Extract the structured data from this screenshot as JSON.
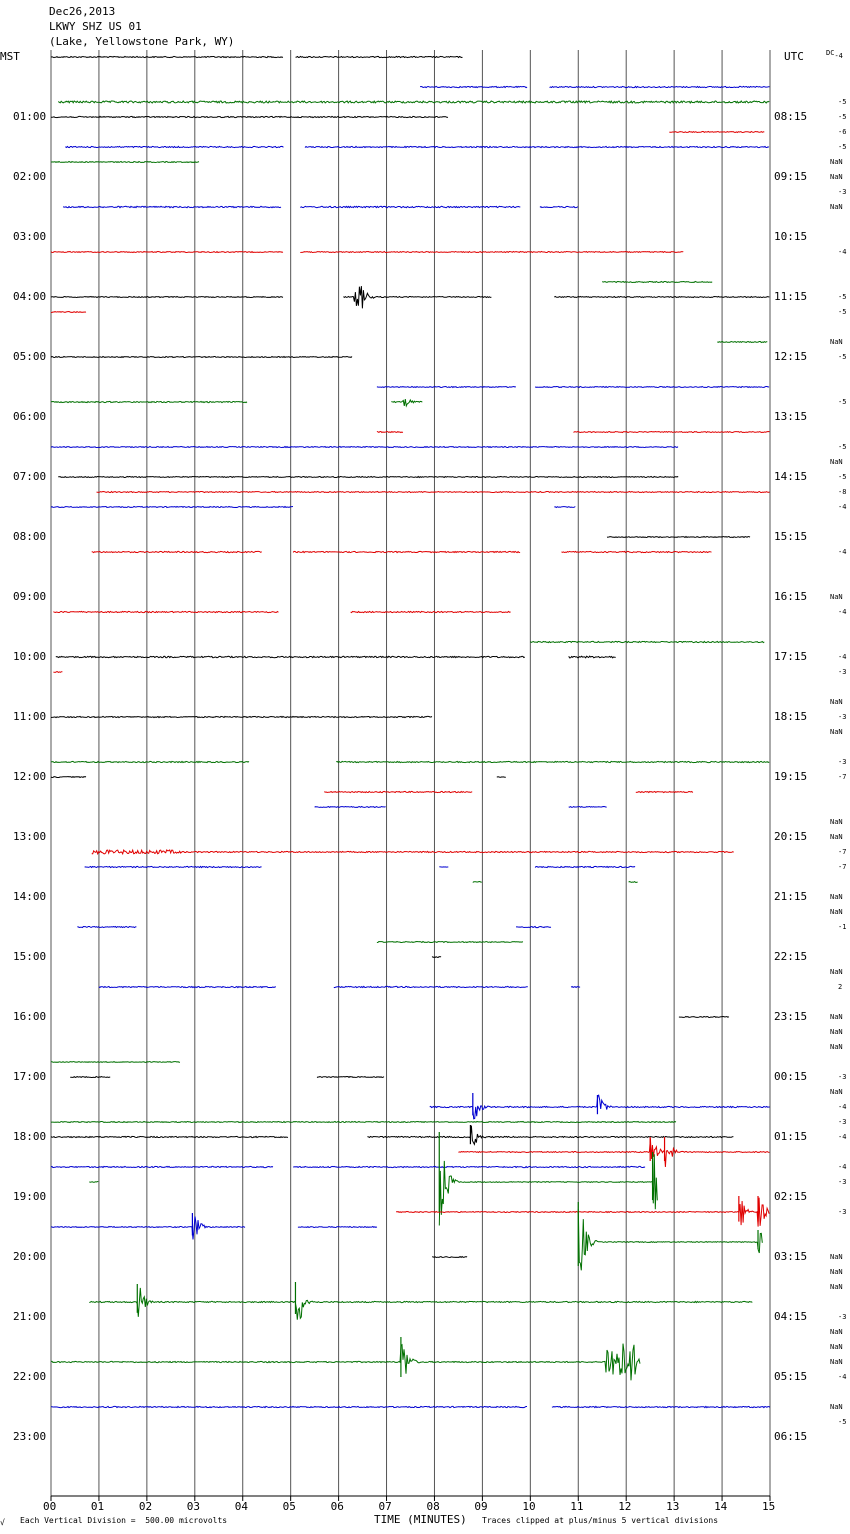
{
  "header": {
    "date": "Dec26,2013",
    "station": "LKWY SHZ US 01",
    "location": "(Lake, Yellowstone Park, WY)"
  },
  "left_tz": "MST",
  "right_tz": "UTC",
  "dc_label": "DC",
  "dc_value": "-4",
  "footer": {
    "left": "Each Vertical Division =  500.00 microvolts",
    "center": "TIME (MINUTES)",
    "right": "Traces clipped at plus/minus 5 vertical divisions",
    "corner": "√"
  },
  "chart_data": {
    "type": "line",
    "x_ticks": [
      "00",
      "01",
      "02",
      "03",
      "04",
      "05",
      "06",
      "07",
      "08",
      "09",
      "10",
      "11",
      "12",
      "13",
      "14",
      "15"
    ],
    "xlim": [
      0,
      15
    ],
    "xlabel": "TIME (MINUTES)",
    "grid": true,
    "row_colors": [
      "#000000",
      "#e00000",
      "#0000d0",
      "#007000"
    ],
    "rows_per_hour": 4,
    "hour_rows": 24,
    "total_rows": 96,
    "left_hour_labels": [
      "01:00",
      "02:00",
      "03:00",
      "04:00",
      "05:00",
      "06:00",
      "07:00",
      "08:00",
      "09:00",
      "10:00",
      "11:00",
      "12:00",
      "13:00",
      "14:00",
      "15:00",
      "16:00",
      "17:00",
      "18:00",
      "19:00",
      "20:00",
      "21:00",
      "22:00",
      "23:00"
    ],
    "right_hour_labels": [
      "08:15",
      "09:15",
      "10:15",
      "11:15",
      "12:15",
      "13:15",
      "14:15",
      "15:15",
      "16:15",
      "17:15",
      "18:15",
      "19:15",
      "20:15",
      "21:15",
      "22:15",
      "23:15",
      "00:15",
      "01:15",
      "02:15",
      "03:15",
      "04:15",
      "05:15",
      "06:15"
    ],
    "dc_offsets": [
      {
        "row": 3,
        "value": "-5"
      },
      {
        "row": 4,
        "value": "-5"
      },
      {
        "row": 5,
        "value": "-6"
      },
      {
        "row": 6,
        "value": "-5"
      },
      {
        "row": 7,
        "value": "NaN"
      },
      {
        "row": 8,
        "value": "NaN"
      },
      {
        "row": 9,
        "value": "-3"
      },
      {
        "row": 10,
        "value": "NaN"
      },
      {
        "row": 13,
        "value": "-4"
      },
      {
        "row": 16,
        "value": "-5"
      },
      {
        "row": 17,
        "value": "-5"
      },
      {
        "row": 19,
        "value": "NaN"
      },
      {
        "row": 20,
        "value": "-5"
      },
      {
        "row": 23,
        "value": "-5"
      },
      {
        "row": 26,
        "value": "-5"
      },
      {
        "row": 27,
        "value": "NaN"
      },
      {
        "row": 28,
        "value": "-5"
      },
      {
        "row": 29,
        "value": "-8"
      },
      {
        "row": 30,
        "value": "-4"
      },
      {
        "row": 33,
        "value": "-4"
      },
      {
        "row": 36,
        "value": "NaN"
      },
      {
        "row": 37,
        "value": "-4"
      },
      {
        "row": 40,
        "value": "-4"
      },
      {
        "row": 41,
        "value": "-3"
      },
      {
        "row": 43,
        "value": "NaN"
      },
      {
        "row": 44,
        "value": "-3"
      },
      {
        "row": 45,
        "value": "NaN"
      },
      {
        "row": 47,
        "value": "-3"
      },
      {
        "row": 48,
        "value": "-7"
      },
      {
        "row": 51,
        "value": "NaN"
      },
      {
        "row": 52,
        "value": "NaN"
      },
      {
        "row": 53,
        "value": "-7"
      },
      {
        "row": 54,
        "value": "-7"
      },
      {
        "row": 56,
        "value": "NaN"
      },
      {
        "row": 57,
        "value": "NaN"
      },
      {
        "row": 58,
        "value": "-1"
      },
      {
        "row": 61,
        "value": "NaN"
      },
      {
        "row": 62,
        "value": "2"
      },
      {
        "row": 64,
        "value": "NaN"
      },
      {
        "row": 65,
        "value": "NaN"
      },
      {
        "row": 66,
        "value": "NaN"
      },
      {
        "row": 68,
        "value": "-3"
      },
      {
        "row": 69,
        "value": "NaN"
      },
      {
        "row": 70,
        "value": "-4"
      },
      {
        "row": 71,
        "value": "-3"
      },
      {
        "row": 72,
        "value": "-4"
      },
      {
        "row": 74,
        "value": "-4"
      },
      {
        "row": 75,
        "value": "-3"
      },
      {
        "row": 77,
        "value": "-3"
      },
      {
        "row": 80,
        "value": "NaN"
      },
      {
        "row": 81,
        "value": "NaN"
      },
      {
        "row": 82,
        "value": "NaN"
      },
      {
        "row": 84,
        "value": "-3"
      },
      {
        "row": 85,
        "value": "NaN"
      },
      {
        "row": 86,
        "value": "NaN"
      },
      {
        "row": 87,
        "value": "NaN"
      },
      {
        "row": 88,
        "value": "-4"
      },
      {
        "row": 90,
        "value": "NaN"
      },
      {
        "row": 91,
        "value": "-5"
      }
    ],
    "segments": [
      {
        "row": 0,
        "start": 0.0,
        "end": 4.85,
        "amp": 0.6
      },
      {
        "row": 0,
        "start": 5.1,
        "end": 8.6,
        "amp": 0.6
      },
      {
        "row": 2,
        "start": 7.7,
        "end": 9.95,
        "amp": 0.6
      },
      {
        "row": 2,
        "start": 10.4,
        "end": 15.0,
        "amp": 0.6
      },
      {
        "row": 3,
        "start": 0.15,
        "end": 15.0,
        "amp": 1.0
      },
      {
        "row": 4,
        "start": 0.0,
        "end": 8.3,
        "amp": 0.6
      },
      {
        "row": 5,
        "start": 12.9,
        "end": 14.9,
        "amp": 0.5
      },
      {
        "row": 6,
        "start": 0.3,
        "end": 4.85,
        "amp": 0.6
      },
      {
        "row": 6,
        "start": 5.3,
        "end": 15.0,
        "amp": 0.6
      },
      {
        "row": 7,
        "start": 0.0,
        "end": 3.1,
        "amp": 0.5
      },
      {
        "row": 10,
        "start": 0.25,
        "end": 4.8,
        "amp": 0.7
      },
      {
        "row": 10,
        "start": 5.2,
        "end": 9.8,
        "amp": 0.7
      },
      {
        "row": 10,
        "start": 10.2,
        "end": 11.0,
        "amp": 0.7
      },
      {
        "row": 13,
        "start": 0.0,
        "end": 4.85,
        "amp": 0.5
      },
      {
        "row": 13,
        "start": 5.2,
        "end": 13.2,
        "amp": 0.5
      },
      {
        "row": 15,
        "start": 11.5,
        "end": 13.8,
        "amp": 0.5
      },
      {
        "row": 16,
        "start": 0.0,
        "end": 4.85,
        "amp": 0.5
      },
      {
        "row": 16,
        "start": 6.1,
        "end": 9.2,
        "amp": 0.5
      },
      {
        "row": 16,
        "start": 10.5,
        "end": 15.0,
        "amp": 0.5
      },
      {
        "row": 17,
        "start": 0.0,
        "end": 0.75,
        "amp": 0.5
      },
      {
        "row": 19,
        "start": 13.9,
        "end": 14.95,
        "amp": 0.5
      },
      {
        "row": 20,
        "start": 0.0,
        "end": 6.3,
        "amp": 0.5
      },
      {
        "row": 22,
        "start": 6.8,
        "end": 9.7,
        "amp": 0.5
      },
      {
        "row": 22,
        "start": 10.1,
        "end": 15.0,
        "amp": 0.5
      },
      {
        "row": 23,
        "start": 0.0,
        "end": 4.1,
        "amp": 0.6
      },
      {
        "row": 23,
        "start": 7.1,
        "end": 7.75,
        "amp": 0.6
      },
      {
        "row": 25,
        "start": 6.8,
        "end": 7.35,
        "amp": 0.6
      },
      {
        "row": 25,
        "start": 10.9,
        "end": 15.0,
        "amp": 0.5
      },
      {
        "row": 26,
        "start": 0.0,
        "end": 13.1,
        "amp": 0.5
      },
      {
        "row": 28,
        "start": 0.15,
        "end": 13.1,
        "amp": 0.5
      },
      {
        "row": 29,
        "start": 0.95,
        "end": 15.0,
        "amp": 0.5
      },
      {
        "row": 30,
        "start": 0.0,
        "end": 5.05,
        "amp": 0.5
      },
      {
        "row": 30,
        "start": 10.5,
        "end": 10.95,
        "amp": 0.5
      },
      {
        "row": 32,
        "start": 11.6,
        "end": 14.6,
        "amp": 0.5
      },
      {
        "row": 33,
        "start": 0.85,
        "end": 4.4,
        "amp": 0.6
      },
      {
        "row": 33,
        "start": 5.05,
        "end": 9.8,
        "amp": 0.6
      },
      {
        "row": 33,
        "start": 10.65,
        "end": 13.8,
        "amp": 0.6
      },
      {
        "row": 37,
        "start": 0.05,
        "end": 4.75,
        "amp": 0.6
      },
      {
        "row": 37,
        "start": 6.25,
        "end": 9.6,
        "amp": 0.6
      },
      {
        "row": 39,
        "start": 10.0,
        "end": 14.9,
        "amp": 0.6
      },
      {
        "row": 40,
        "start": 0.1,
        "end": 9.9,
        "amp": 0.7
      },
      {
        "row": 40,
        "start": 10.8,
        "end": 11.8,
        "amp": 0.9
      },
      {
        "row": 41,
        "start": 0.05,
        "end": 0.25,
        "amp": 0.6
      },
      {
        "row": 44,
        "start": 0.0,
        "end": 7.95,
        "amp": 0.6
      },
      {
        "row": 47,
        "start": 0.0,
        "end": 4.15,
        "amp": 0.6
      },
      {
        "row": 47,
        "start": 5.95,
        "end": 15.0,
        "amp": 0.6
      },
      {
        "row": 48,
        "start": 0.0,
        "end": 0.75,
        "amp": 0.5
      },
      {
        "row": 48,
        "start": 9.3,
        "end": 9.5,
        "amp": 0.3
      },
      {
        "row": 49,
        "start": 5.7,
        "end": 8.8,
        "amp": 0.6
      },
      {
        "row": 49,
        "start": 12.2,
        "end": 13.4,
        "amp": 0.6
      },
      {
        "row": 50,
        "start": 5.5,
        "end": 7.0,
        "amp": 0.5
      },
      {
        "row": 50,
        "start": 10.8,
        "end": 11.6,
        "amp": 0.5
      },
      {
        "row": 53,
        "start": 0.85,
        "end": 14.25,
        "amp": 0.6
      },
      {
        "row": 54,
        "start": 0.7,
        "end": 4.4,
        "amp": 0.6
      },
      {
        "row": 54,
        "start": 8.1,
        "end": 8.3,
        "amp": 0.5
      },
      {
        "row": 54,
        "start": 10.1,
        "end": 12.2,
        "amp": 0.6
      },
      {
        "row": 55,
        "start": 8.8,
        "end": 9.0,
        "amp": 0.5
      },
      {
        "row": 55,
        "start": 12.05,
        "end": 12.25,
        "amp": 0.5
      },
      {
        "row": 58,
        "start": 0.55,
        "end": 1.8,
        "amp": 0.5
      },
      {
        "row": 58,
        "start": 9.7,
        "end": 10.45,
        "amp": 0.6
      },
      {
        "row": 59,
        "start": 6.8,
        "end": 9.85,
        "amp": 0.5
      },
      {
        "row": 60,
        "start": 7.95,
        "end": 8.15,
        "amp": 0.5
      },
      {
        "row": 62,
        "start": 1.0,
        "end": 4.7,
        "amp": 0.6
      },
      {
        "row": 62,
        "start": 5.9,
        "end": 9.95,
        "amp": 0.6
      },
      {
        "row": 62,
        "start": 10.85,
        "end": 11.05,
        "amp": 0.5
      },
      {
        "row": 64,
        "start": 13.1,
        "end": 14.15,
        "amp": 0.5
      },
      {
        "row": 67,
        "start": 0.0,
        "end": 2.7,
        "amp": 0.4
      },
      {
        "row": 68,
        "start": 0.4,
        "end": 1.25,
        "amp": 0.5
      },
      {
        "row": 68,
        "start": 5.55,
        "end": 6.95,
        "amp": 0.5
      },
      {
        "row": 70,
        "start": 7.9,
        "end": 15.0,
        "amp": 0.6
      },
      {
        "row": 71,
        "start": 0.0,
        "end": 13.05,
        "amp": 0.5
      },
      {
        "row": 72,
        "start": 0.0,
        "end": 4.95,
        "amp": 0.6
      },
      {
        "row": 72,
        "start": 6.6,
        "end": 14.25,
        "amp": 0.6
      },
      {
        "row": 73,
        "start": 8.5,
        "end": 15.0,
        "amp": 0.5
      },
      {
        "row": 74,
        "start": 0.0,
        "end": 4.65,
        "amp": 0.6
      },
      {
        "row": 74,
        "start": 5.05,
        "end": 12.4,
        "amp": 0.6
      },
      {
        "row": 75,
        "start": 0.8,
        "end": 1.0,
        "amp": 0.5
      },
      {
        "row": 75,
        "start": 8.1,
        "end": 12.65,
        "amp": 0.4
      },
      {
        "row": 77,
        "start": 7.2,
        "end": 15.0,
        "amp": 0.5
      },
      {
        "row": 78,
        "start": 0.0,
        "end": 4.05,
        "amp": 0.5
      },
      {
        "row": 78,
        "start": 5.15,
        "end": 6.8,
        "amp": 0.5
      },
      {
        "row": 79,
        "start": 11.0,
        "end": 14.85,
        "amp": 0.4
      },
      {
        "row": 80,
        "start": 7.95,
        "end": 8.7,
        "amp": 0.5
      },
      {
        "row": 83,
        "start": 0.8,
        "end": 14.65,
        "amp": 0.6
      },
      {
        "row": 87,
        "start": 0.0,
        "end": 12.3,
        "amp": 0.6
      },
      {
        "row": 90,
        "start": 0.0,
        "end": 9.95,
        "amp": 0.6
      },
      {
        "row": 90,
        "start": 10.45,
        "end": 15.0,
        "amp": 0.6
      }
    ],
    "events": [
      {
        "row": 16,
        "x": 6.3,
        "amp": 12,
        "dur": 0.2
      },
      {
        "row": 23,
        "x": 7.35,
        "amp": 4,
        "dur": 0.1
      },
      {
        "row": 37,
        "x": 9.6,
        "amp": 5,
        "dur": 0.1
      },
      {
        "row": 53,
        "x": 0.85,
        "amp": 2,
        "dur": 1.8
      },
      {
        "row": 70,
        "x": 8.8,
        "amp": 14,
        "dur": 0.05
      },
      {
        "row": 70,
        "x": 11.4,
        "amp": 12,
        "dur": 0.05
      },
      {
        "row": 72,
        "x": 8.75,
        "amp": 12,
        "dur": 0.05
      },
      {
        "row": 73,
        "x": 12.5,
        "amp": 15,
        "dur": 0.05
      },
      {
        "row": 73,
        "x": 12.8,
        "amp": 15,
        "dur": 0.05
      },
      {
        "row": 75,
        "x": 8.1,
        "amp": 50,
        "dur": 0.05
      },
      {
        "row": 75,
        "x": 12.55,
        "amp": 30,
        "dur": 0.05
      },
      {
        "row": 77,
        "x": 14.35,
        "amp": 16,
        "dur": 0.05
      },
      {
        "row": 77,
        "x": 14.75,
        "amp": 16,
        "dur": 0.05
      },
      {
        "row": 78,
        "x": 2.95,
        "amp": 14,
        "dur": 0.05
      },
      {
        "row": 79,
        "x": 11.0,
        "amp": 40,
        "dur": 0.05
      },
      {
        "row": 79,
        "x": 14.75,
        "amp": 12,
        "dur": 0.05
      },
      {
        "row": 83,
        "x": 1.8,
        "amp": 18,
        "dur": 0.05
      },
      {
        "row": 83,
        "x": 5.1,
        "amp": 20,
        "dur": 0.1
      },
      {
        "row": 87,
        "x": 7.3,
        "amp": 25,
        "dur": 0.05
      },
      {
        "row": 87,
        "x": 11.55,
        "amp": 20,
        "dur": 0.6
      }
    ]
  }
}
